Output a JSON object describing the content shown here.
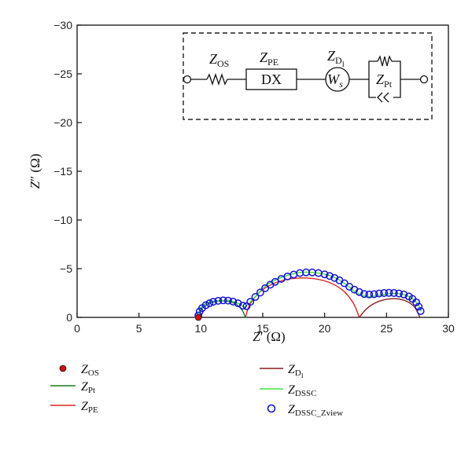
{
  "chart_data": {
    "type": "scatter",
    "xlabel": "Z′ (Ω)",
    "ylabel": "Z″ (Ω)",
    "xlim": [
      0,
      30
    ],
    "ylim": [
      0,
      -30
    ],
    "y_axis_inverted": true,
    "x_ticks": [
      0,
      5,
      10,
      15,
      20,
      25,
      30
    ],
    "y_ticks": [
      0,
      -5,
      -10,
      -15,
      -20,
      -25,
      -30
    ],
    "grid": false,
    "legend_placement": "below the plot, two columns",
    "series": [
      {
        "name": "Z_OS",
        "kind": "point",
        "color": "#cc1111",
        "points": [
          [
            9.8,
            0
          ]
        ]
      },
      {
        "name": "Z_Pt",
        "kind": "line",
        "color": "#1a7a1a",
        "points": [
          [
            9.8,
            0
          ],
          [
            10.1,
            -0.95
          ],
          [
            10.9,
            -1.55
          ],
          [
            11.8,
            -1.7
          ],
          [
            12.7,
            -1.45
          ],
          [
            13.3,
            -0.8
          ],
          [
            13.6,
            0
          ]
        ]
      },
      {
        "name": "Z_PE",
        "kind": "line",
        "color": "#dd2222",
        "points": [
          [
            13.6,
            0
          ],
          [
            14.0,
            -1.4
          ],
          [
            15.0,
            -2.85
          ],
          [
            16.5,
            -3.75
          ],
          [
            18.2,
            -4.05
          ],
          [
            20.0,
            -3.75
          ],
          [
            21.4,
            -2.85
          ],
          [
            22.3,
            -1.5
          ],
          [
            22.8,
            0
          ]
        ]
      },
      {
        "name": "Z_D_I",
        "kind": "line",
        "color": "#8b1a1a",
        "points": [
          [
            22.8,
            0
          ],
          [
            23.4,
            -0.9
          ],
          [
            24.2,
            -1.55
          ],
          [
            25.0,
            -1.85
          ],
          [
            25.9,
            -1.9
          ],
          [
            26.7,
            -1.6
          ],
          [
            27.3,
            -1.0
          ],
          [
            27.7,
            0
          ]
        ]
      },
      {
        "name": "Z_DSSC",
        "kind": "line",
        "color": "#40e040",
        "points": [
          [
            9.8,
            0
          ],
          [
            10.0,
            -1.0
          ],
          [
            10.6,
            -1.55
          ],
          [
            11.4,
            -1.72
          ],
          [
            12.3,
            -1.7
          ],
          [
            13.1,
            -1.4
          ],
          [
            13.6,
            -1.1
          ],
          [
            14.3,
            -2.0
          ],
          [
            15.3,
            -3.3
          ],
          [
            16.5,
            -4.1
          ],
          [
            18.0,
            -4.6
          ],
          [
            19.5,
            -4.55
          ],
          [
            20.8,
            -4.1
          ],
          [
            21.8,
            -3.3
          ],
          [
            22.6,
            -2.5
          ],
          [
            23.5,
            -2.15
          ],
          [
            24.5,
            -2.3
          ],
          [
            25.5,
            -2.45
          ],
          [
            26.4,
            -2.35
          ],
          [
            27.1,
            -1.9
          ],
          [
            27.6,
            -1.2
          ],
          [
            27.8,
            -0.6
          ]
        ]
      },
      {
        "name": "Z_DSSC_Zview",
        "kind": "marker",
        "color": "#1515d0",
        "points": [
          [
            9.8,
            -0.2
          ],
          [
            9.9,
            -0.6
          ],
          [
            10.1,
            -0.95
          ],
          [
            10.4,
            -1.25
          ],
          [
            10.7,
            -1.45
          ],
          [
            11.0,
            -1.6
          ],
          [
            11.4,
            -1.7
          ],
          [
            11.8,
            -1.75
          ],
          [
            12.2,
            -1.72
          ],
          [
            12.6,
            -1.62
          ],
          [
            13.0,
            -1.45
          ],
          [
            13.4,
            -1.2
          ],
          [
            13.7,
            -1.15
          ],
          [
            14.0,
            -1.6
          ],
          [
            14.4,
            -2.1
          ],
          [
            14.8,
            -2.55
          ],
          [
            15.2,
            -3.0
          ],
          [
            15.6,
            -3.35
          ],
          [
            16.0,
            -3.65
          ],
          [
            16.5,
            -3.95
          ],
          [
            17.0,
            -4.2
          ],
          [
            17.5,
            -4.4
          ],
          [
            18.0,
            -4.55
          ],
          [
            18.5,
            -4.62
          ],
          [
            19.0,
            -4.62
          ],
          [
            19.5,
            -4.55
          ],
          [
            20.0,
            -4.42
          ],
          [
            20.4,
            -4.25
          ],
          [
            20.8,
            -4.05
          ],
          [
            21.2,
            -3.8
          ],
          [
            21.6,
            -3.5
          ],
          [
            22.0,
            -3.15
          ],
          [
            22.4,
            -2.85
          ],
          [
            22.8,
            -2.6
          ],
          [
            23.2,
            -2.4
          ],
          [
            23.6,
            -2.35
          ],
          [
            24.0,
            -2.38
          ],
          [
            24.4,
            -2.45
          ],
          [
            24.8,
            -2.5
          ],
          [
            25.2,
            -2.52
          ],
          [
            25.6,
            -2.5
          ],
          [
            26.0,
            -2.45
          ],
          [
            26.4,
            -2.35
          ],
          [
            26.8,
            -2.15
          ],
          [
            27.1,
            -1.9
          ],
          [
            27.4,
            -1.55
          ],
          [
            27.6,
            -1.1
          ],
          [
            27.75,
            -0.65
          ]
        ]
      }
    ],
    "legend": [
      {
        "main": "Z",
        "sub": "OS",
        "symbol": "filled-circle",
        "color": "#cc1111"
      },
      {
        "main": "Z",
        "sub": "Pt",
        "symbol": "line",
        "color": "#1a7a1a"
      },
      {
        "main": "Z",
        "sub": "PE",
        "symbol": "line",
        "color": "#dd2222"
      },
      {
        "main": "Z",
        "sub": "D",
        "subsub": "I",
        "symbol": "line",
        "color": "#8b1a1a"
      },
      {
        "main": "Z",
        "sub": "DSSC",
        "symbol": "line",
        "color": "#40e040"
      },
      {
        "main": "Z",
        "sub": "DSSC_Zview",
        "symbol": "open-circle",
        "color": "#1515d0"
      }
    ]
  },
  "inset_circuit": {
    "elements": [
      {
        "main": "Z",
        "sub": "OS",
        "box_label": ""
      },
      {
        "main": "Z",
        "sub": "PE",
        "box_label": "DX"
      },
      {
        "main": "Z",
        "sub": "D",
        "subsub": "I",
        "box_label": "W",
        "box_sub": "s"
      },
      {
        "main": "Z",
        "sub": "Pt",
        "box_label": ""
      }
    ]
  }
}
